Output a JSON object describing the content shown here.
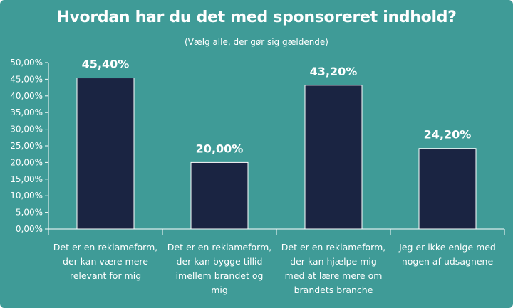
{
  "chart_data": {
    "type": "bar",
    "title": "Hvordan har du det med sponsoreret indhold?",
    "subtitle": "(Vælg alle, der gør sig gældende)",
    "categories": [
      "Det er en reklameform, der kan være mere relevant for mig",
      "Det er en reklameform, der kan bygge tillid imellem brandet og mig",
      "Det er en reklameform, der kan hjælpe mig med at lære mere om brandets branche",
      "Jeg er ikke enige med nogen af udsagnene"
    ],
    "values": [
      45.4,
      20.0,
      43.2,
      24.2
    ],
    "data_labels": [
      "45,40%",
      "20,00%",
      "43,20%",
      "24,20%"
    ],
    "ylim": [
      0,
      50
    ],
    "yticks": [
      0,
      5,
      10,
      15,
      20,
      25,
      30,
      35,
      40,
      45,
      50
    ],
    "ytick_labels": [
      "0,00%",
      "5,00%",
      "10,00%",
      "15,00%",
      "20,00%",
      "25,00%",
      "30,00%",
      "35,00%",
      "40,00%",
      "45,00%",
      "50,00%"
    ],
    "xlabel": "",
    "ylabel": "",
    "grid": false,
    "legend": "none",
    "colors": {
      "background": "#3f9b97",
      "bar": "#1a2442",
      "text": "#ffffff",
      "axis": "#ffffff"
    }
  }
}
